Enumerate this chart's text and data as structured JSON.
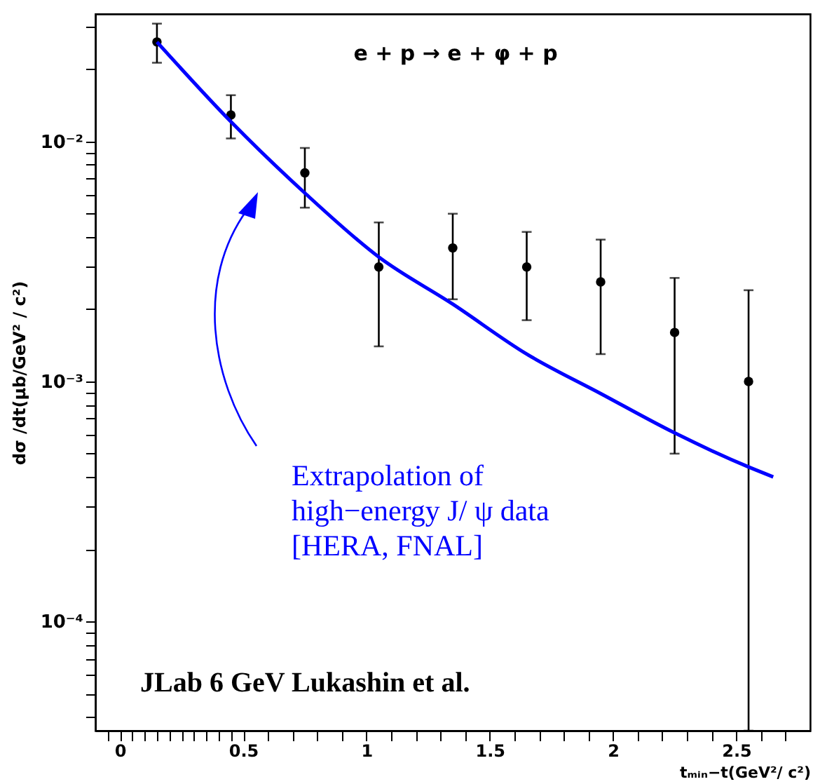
{
  "chart_data": {
    "type": "scatter",
    "xlabel": "tₘᵢₙ−t(GeV²/ c²)",
    "ylabel": "dσ /dt(μb/GeV² / c²)",
    "annotations": [
      "e + p → e +  φ + p",
      "Extrapolation of\nhigh−energy   J/ ψ  data\n[HERA, FNAL]",
      "JLab 6 GeV Lukashin et al."
    ],
    "xlim": [
      -0.1,
      2.8
    ],
    "xticks": [
      {
        "value": -0.05,
        "label": null
      },
      0,
      {
        "value": 0.05,
        "label": null
      },
      {
        "value": 0.1,
        "label": null
      },
      {
        "value": 0.15,
        "label": null
      },
      {
        "value": 0.2,
        "label": null
      },
      {
        "value": 0.25,
        "label": null
      },
      {
        "value": 0.3,
        "label": null
      },
      {
        "value": 0.35,
        "label": null
      },
      {
        "value": 0.4,
        "label": null
      },
      {
        "value": 0.45,
        "label": null
      },
      0.5,
      {
        "value": 0.6,
        "label": null
      },
      {
        "value": 0.7,
        "label": null
      },
      {
        "value": 0.8,
        "label": null
      },
      {
        "value": 0.9,
        "label": null
      },
      1,
      {
        "value": 1.1,
        "label": null
      },
      {
        "value": 1.2,
        "label": null
      },
      {
        "value": 1.3,
        "label": null
      },
      {
        "value": 1.4,
        "label": null
      },
      1.5,
      {
        "value": 1.6,
        "label": null
      },
      {
        "value": 1.7,
        "label": null
      },
      {
        "value": 1.8,
        "label": null
      },
      {
        "value": 1.9,
        "label": null
      },
      2,
      {
        "value": 2.1,
        "label": null
      },
      {
        "value": 2.2,
        "label": null
      },
      {
        "value": 2.3,
        "label": null
      },
      {
        "value": 2.4,
        "label": null
      },
      2.5,
      {
        "value": 2.6,
        "label": null
      },
      {
        "value": 2.7,
        "label": null
      }
    ],
    "ylim": [
      3.5e-05,
      0.034
    ],
    "yticks": [
      {
        "value": 4e-05,
        "label": null
      },
      {
        "value": 5e-05,
        "label": null
      },
      {
        "value": 6e-05,
        "label": null
      },
      {
        "value": 7e-05,
        "label": null
      },
      {
        "value": 8e-05,
        "label": null
      },
      {
        "value": 9e-05,
        "label": null
      },
      {
        "value": 0.0001,
        "label": "10⁻⁴"
      },
      {
        "value": 0.0002,
        "label": null
      },
      {
        "value": 0.0003,
        "label": null
      },
      {
        "value": 0.0004,
        "label": null
      },
      {
        "value": 0.0005,
        "label": null
      },
      {
        "value": 0.0006,
        "label": null
      },
      {
        "value": 0.0007,
        "label": null
      },
      {
        "value": 0.0008,
        "label": null
      },
      {
        "value": 0.0009,
        "label": null
      },
      {
        "value": 0.001,
        "label": "10⁻³"
      },
      {
        "value": 0.002,
        "label": null
      },
      {
        "value": 0.003,
        "label": null
      },
      {
        "value": 0.004,
        "label": null
      },
      {
        "value": 0.005,
        "label": null
      },
      {
        "value": 0.006,
        "label": null
      },
      {
        "value": 0.007,
        "label": null
      },
      {
        "value": 0.008,
        "label": null
      },
      {
        "value": 0.009,
        "label": null
      },
      {
        "value": 0.01,
        "label": "10⁻²"
      },
      {
        "value": 0.02,
        "label": null
      },
      {
        "value": 0.03,
        "label": null
      }
    ],
    "log": "y",
    "grid": false,
    "series": [
      {
        "color": "#000000",
        "marker": "circle",
        "x": [
          0.15,
          0.45,
          0.75,
          1.05,
          1.35,
          1.65,
          1.95,
          2.25,
          2.55
        ],
        "values": [
          0.026,
          0.0129,
          0.0074,
          0.003,
          0.0036,
          0.003,
          0.0026,
          0.0016,
          0.001
        ],
        "errors": [
          [
            0.0213,
            0.031
          ],
          [
            0.0103,
            0.0156
          ],
          [
            0.0053,
            0.0094
          ],
          [
            0.0014,
            0.0046
          ],
          [
            0.0022,
            0.005
          ],
          [
            0.0018,
            0.0042
          ],
          [
            0.0013,
            0.0039
          ],
          [
            0.0005,
            0.0027
          ],
          [
            3.5e-05,
            0.0024
          ]
        ]
      },
      {
        "type": "line",
        "color": "#0000ff",
        "line_style": "solid",
        "marker": "none",
        "x": [
          0.15,
          0.45,
          0.75,
          1.05,
          1.35,
          1.65,
          1.95,
          2.25,
          2.55,
          2.65
        ],
        "values": [
          0.026,
          0.0121,
          0.0061,
          0.0033,
          0.0021,
          0.0013,
          0.00089,
          0.00061,
          0.00044,
          0.0004
        ]
      }
    ]
  }
}
